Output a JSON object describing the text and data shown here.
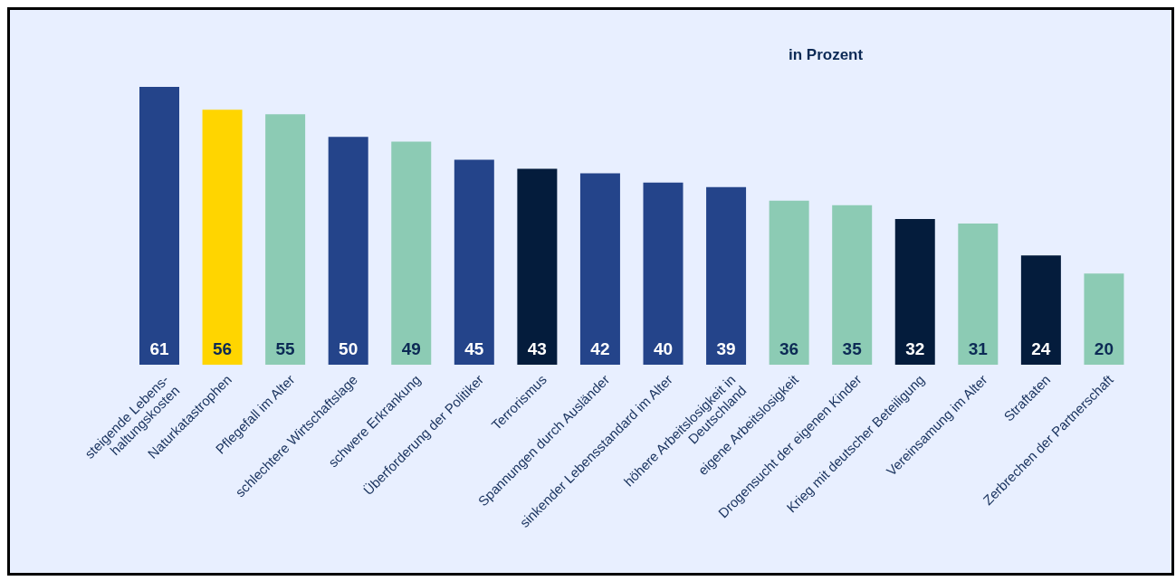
{
  "chart_data": {
    "type": "bar",
    "subtitle": "in Prozent",
    "categories": [
      "steigende Lebens-\nhaltungskosten",
      "Naturkatastrophen",
      "Pflegefall im Alter",
      "schlechtere Wirtschaftslage",
      "schwere Erkrankung",
      "Überforderung der Politiker",
      "Terrorismus",
      "Spannungen durch Ausländer",
      "sinkender Lebensstandard im Alter",
      "höhere Arbeitslosigkeit in\nDeutschland",
      "eigene Arbeitslosigkeit",
      "Drogensucht der eigenen Kinder",
      "Krieg mit deutscher Beteiligung",
      "Vereinsamung im Alter",
      "Straftaten",
      "Zerbrechen der Partnerschaft"
    ],
    "values": [
      61,
      56,
      55,
      50,
      49,
      45,
      43,
      42,
      40,
      39,
      36,
      35,
      32,
      31,
      24,
      20
    ],
    "colors": [
      "#24448a",
      "#ffd500",
      "#8ccbb4",
      "#24448a",
      "#8ccbb4",
      "#24448a",
      "#041c3c",
      "#24448a",
      "#24448a",
      "#24448a",
      "#8ccbb4",
      "#8ccbb4",
      "#041c3c",
      "#8ccbb4",
      "#041c3c",
      "#8ccbb4"
    ],
    "data_labels": true,
    "grid": false,
    "legend": false
  }
}
